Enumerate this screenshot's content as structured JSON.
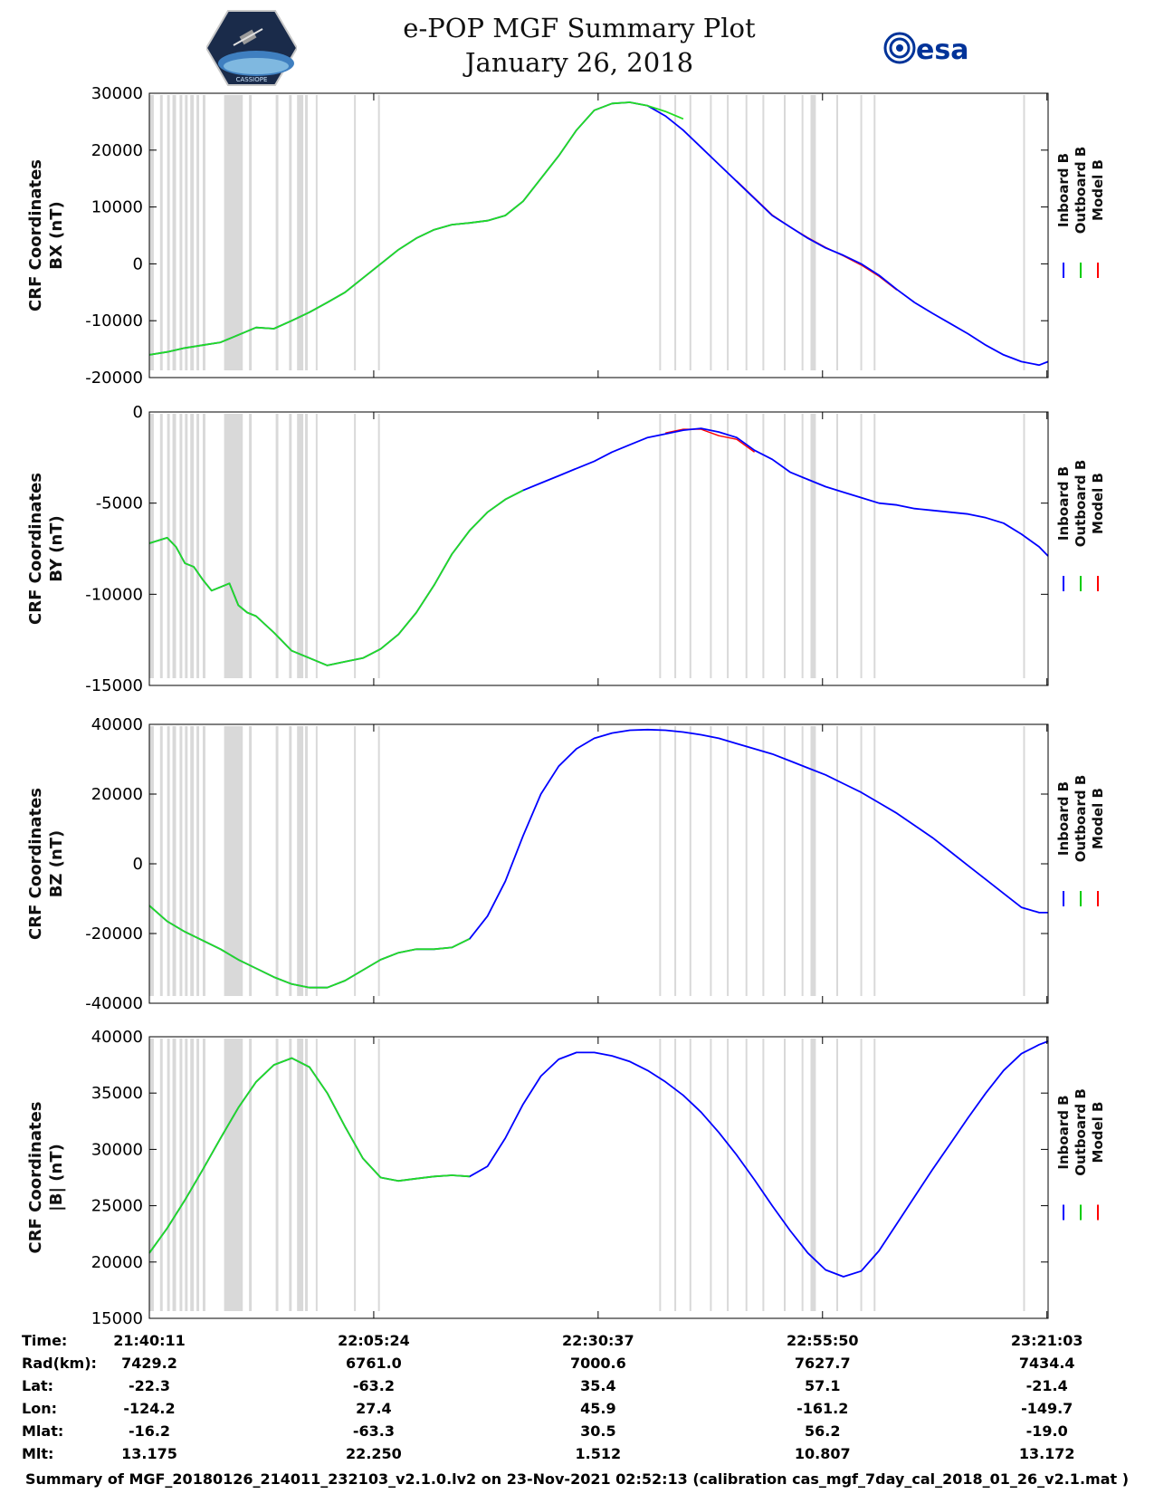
{
  "header": {
    "title_line1": "e-POP MGF Summary Plot",
    "title_line2": "January 26, 2018",
    "left_logo": "cassiope-mission-patch",
    "left_logo_text": "CASSIOPE",
    "right_logo_text": "esa"
  },
  "legend": {
    "entries": [
      "Inboard B",
      "Outboard B",
      "Model B"
    ],
    "colors": [
      "#0000ff",
      "#00cc00",
      "#ff0000"
    ]
  },
  "colors": {
    "inboard": "#0000ff",
    "outboard": "#22dd22",
    "model": "#ff0000",
    "gap_shading": "#d9d9d9",
    "axis": "#000000"
  },
  "chart_data": [
    {
      "type": "line",
      "ylabel_line1": "CRF Coordinates",
      "ylabel_line2": "BX (nT)",
      "ylim": [
        -20000,
        30000
      ],
      "yticks": [
        "30000",
        "20000",
        "10000",
        "0",
        "-10000",
        "-20000"
      ],
      "ytick_values": [
        30000,
        20000,
        10000,
        0,
        -10000,
        -20000
      ],
      "xlim_min": [
        0,
        101
      ],
      "series": [
        {
          "name": "Outboard B",
          "x": [
            0,
            2,
            4,
            6,
            8,
            10,
            12,
            14,
            16,
            18,
            20,
            22,
            24,
            26,
            28,
            30,
            32,
            34,
            36,
            38,
            40,
            42,
            44,
            46,
            48,
            50,
            52,
            54,
            56,
            58,
            60
          ],
          "values": [
            -16000,
            -15500,
            -14800,
            -14300,
            -13800,
            -12500,
            -11200,
            -11400,
            -10000,
            -8500,
            -6800,
            -5000,
            -2500,
            0,
            2500,
            4500,
            6000,
            6900,
            7200,
            7600,
            8500,
            11000,
            15000,
            19000,
            23500,
            27000,
            28200,
            28400,
            27800,
            26800,
            25500
          ]
        },
        {
          "name": "Inboard B",
          "x": [
            0,
            2,
            4,
            6,
            8,
            10,
            12,
            14,
            16,
            18,
            20,
            22,
            24,
            26,
            28,
            30,
            32,
            34,
            36,
            38,
            40,
            42,
            44,
            46,
            48,
            50,
            52,
            54,
            56,
            58,
            60,
            62,
            64,
            66,
            68,
            70,
            72,
            74,
            76,
            78,
            80,
            82,
            84,
            86,
            88,
            90,
            92,
            94,
            96,
            98,
            100,
            101
          ],
          "values": [
            -16000,
            -15500,
            -14800,
            -14300,
            -13800,
            -12500,
            -11200,
            -11400,
            -10000,
            -8500,
            -6800,
            -5000,
            -2500,
            0,
            2500,
            4500,
            6000,
            6900,
            7200,
            7600,
            8500,
            11000,
            15000,
            19000,
            23500,
            27000,
            28200,
            28400,
            27800,
            26000,
            23500,
            20500,
            17500,
            14500,
            11500,
            8500,
            6500,
            4500,
            2800,
            1500,
            0,
            -2000,
            -4500,
            -6800,
            -8700,
            -10500,
            -12300,
            -14300,
            -16000,
            -17200,
            -17800,
            -17200
          ]
        },
        {
          "name": "Model B",
          "x": [
            66,
            68,
            70,
            72,
            74,
            76,
            78,
            80,
            82,
            84
          ],
          "values": [
            14600,
            11600,
            8600,
            6500,
            4600,
            2900,
            1400,
            -200,
            -2200,
            -4600
          ]
        }
      ]
    },
    {
      "type": "line",
      "ylabel_line1": "CRF Coordinates",
      "ylabel_line2": "BY (nT)",
      "ylim": [
        -15000,
        0
      ],
      "yticks": [
        "0",
        "-5000",
        "-10000",
        "-15000"
      ],
      "ytick_values": [
        0,
        -5000,
        -10000,
        -15000
      ],
      "xlim_min": [
        0,
        101
      ],
      "series": [
        {
          "name": "Outboard B",
          "x": [
            0,
            2,
            3,
            4,
            5,
            6,
            7,
            8,
            9,
            10,
            11,
            12,
            14,
            16,
            18,
            20,
            22,
            24,
            26,
            28,
            30,
            32,
            34,
            36,
            38,
            40,
            42
          ],
          "values": [
            -7200,
            -6900,
            -7400,
            -8300,
            -8500,
            -9200,
            -9800,
            -9600,
            -9400,
            -10600,
            -11000,
            -11200,
            -12100,
            -13100,
            -13500,
            -13900,
            -13700,
            -13500,
            -13000,
            -12200,
            -11000,
            -9500,
            -7800,
            -6500,
            -5500,
            -4800,
            -4300
          ]
        },
        {
          "name": "Inboard B",
          "x": [
            0,
            2,
            3,
            4,
            5,
            6,
            7,
            8,
            9,
            10,
            11,
            12,
            14,
            16,
            18,
            20,
            22,
            24,
            26,
            28,
            30,
            32,
            34,
            36,
            38,
            40,
            42,
            44,
            46,
            48,
            50,
            52,
            54,
            56,
            58,
            60,
            62,
            64,
            66,
            68,
            70,
            72,
            74,
            76,
            78,
            80,
            82,
            84,
            86,
            88,
            90,
            92,
            94,
            96,
            98,
            100,
            101
          ],
          "values": [
            -7200,
            -6900,
            -7400,
            -8300,
            -8500,
            -9200,
            -9800,
            -9600,
            -9400,
            -10600,
            -11000,
            -11200,
            -12100,
            -13100,
            -13500,
            -13900,
            -13700,
            -13500,
            -13000,
            -12200,
            -11000,
            -9500,
            -7800,
            -6500,
            -5500,
            -4800,
            -4300,
            -3900,
            -3500,
            -3100,
            -2700,
            -2200,
            -1800,
            -1400,
            -1200,
            -1000,
            -900,
            -1100,
            -1400,
            -2100,
            -2600,
            -3300,
            -3700,
            -4100,
            -4400,
            -4700,
            -5000,
            -5100,
            -5300,
            -5400,
            -5500,
            -5600,
            -5800,
            -6100,
            -6700,
            -7400,
            -7900
          ]
        },
        {
          "name": "Model B",
          "x": [
            58,
            60,
            62,
            64,
            66,
            68
          ],
          "values": [
            -1150,
            -950,
            -950,
            -1300,
            -1500,
            -2200
          ]
        }
      ]
    },
    {
      "type": "line",
      "ylabel_line1": "CRF Coordinates",
      "ylabel_line2": "BZ (nT)",
      "ylim": [
        -40000,
        40000
      ],
      "yticks": [
        "40000",
        "20000",
        "0",
        "-20000",
        "-40000"
      ],
      "ytick_values": [
        40000,
        20000,
        0,
        -20000,
        -40000
      ],
      "xlim_min": [
        0,
        101
      ],
      "series": [
        {
          "name": "Outboard B",
          "x": [
            0,
            2,
            4,
            6,
            8,
            10,
            12,
            14,
            16,
            18,
            20,
            22,
            24,
            26,
            28,
            30,
            32,
            34,
            36
          ],
          "values": [
            -12000,
            -16500,
            -19500,
            -22000,
            -24500,
            -27500,
            -30000,
            -32500,
            -34500,
            -35500,
            -35500,
            -33500,
            -30500,
            -27500,
            -25500,
            -24500,
            -24500,
            -24000,
            -21500
          ]
        },
        {
          "name": "Inboard B",
          "x": [
            0,
            2,
            4,
            6,
            8,
            10,
            12,
            14,
            16,
            18,
            20,
            22,
            24,
            26,
            28,
            30,
            32,
            34,
            36,
            38,
            40,
            42,
            44,
            46,
            48,
            50,
            52,
            54,
            56,
            58,
            60,
            62,
            64,
            66,
            68,
            70,
            72,
            74,
            76,
            78,
            80,
            82,
            84,
            86,
            88,
            90,
            92,
            94,
            96,
            98,
            100,
            101
          ],
          "values": [
            -12000,
            -16500,
            -19500,
            -22000,
            -24500,
            -27500,
            -30000,
            -32500,
            -34500,
            -35500,
            -35500,
            -33500,
            -30500,
            -27500,
            -25500,
            -24500,
            -24500,
            -24000,
            -21500,
            -15000,
            -5000,
            8000,
            20000,
            28000,
            33000,
            36000,
            37500,
            38300,
            38500,
            38300,
            37800,
            37000,
            36000,
            34500,
            33000,
            31500,
            29500,
            27500,
            25500,
            23000,
            20500,
            17500,
            14500,
            11000,
            7500,
            3500,
            -500,
            -4500,
            -8500,
            -12500,
            -14000,
            -14000
          ]
        },
        {
          "name": "Model B",
          "x": [],
          "values": []
        }
      ]
    },
    {
      "type": "line",
      "ylabel_line1": "CRF Coordinates",
      "ylabel_line2": "|B| (nT)",
      "ylim": [
        15000,
        40000
      ],
      "yticks": [
        "40000",
        "35000",
        "30000",
        "25000",
        "20000",
        "15000"
      ],
      "ytick_values": [
        40000,
        35000,
        30000,
        25000,
        20000,
        15000
      ],
      "xlim_min": [
        0,
        101
      ],
      "series": [
        {
          "name": "Outboard B",
          "x": [
            0,
            2,
            4,
            6,
            8,
            10,
            12,
            14,
            16,
            18,
            20,
            22,
            24,
            26,
            28,
            30,
            32,
            34,
            36
          ],
          "values": [
            20800,
            23000,
            25500,
            28200,
            31000,
            33700,
            36000,
            37500,
            38100,
            37300,
            35000,
            32000,
            29200,
            27500,
            27200,
            27400,
            27600,
            27700,
            27600
          ]
        },
        {
          "name": "Inboard B",
          "x": [
            0,
            2,
            4,
            6,
            8,
            10,
            12,
            14,
            16,
            18,
            20,
            22,
            24,
            26,
            28,
            30,
            32,
            34,
            36,
            38,
            40,
            42,
            44,
            46,
            48,
            50,
            52,
            54,
            56,
            58,
            60,
            62,
            64,
            66,
            68,
            70,
            72,
            74,
            76,
            78,
            80,
            82,
            84,
            86,
            88,
            90,
            92,
            94,
            96,
            98,
            100,
            101
          ],
          "values": [
            20800,
            23000,
            25500,
            28200,
            31000,
            33700,
            36000,
            37500,
            38100,
            37300,
            35000,
            32000,
            29200,
            27500,
            27200,
            27400,
            27600,
            27700,
            27600,
            28500,
            31000,
            34000,
            36500,
            38000,
            38600,
            38600,
            38300,
            37800,
            37000,
            36000,
            34800,
            33300,
            31500,
            29500,
            27300,
            25000,
            22800,
            20800,
            19300,
            18700,
            19200,
            21000,
            23400,
            25800,
            28200,
            30500,
            32800,
            35000,
            37000,
            38500,
            39300,
            39600
          ]
        },
        {
          "name": "Model B",
          "x": [],
          "values": []
        }
      ]
    }
  ],
  "gap_bands": [
    [
      0.0,
      0.5
    ],
    [
      1.2,
      1.5
    ],
    [
      2.0,
      2.3
    ],
    [
      2.6,
      3.0
    ],
    [
      3.4,
      3.7
    ],
    [
      4.0,
      4.3
    ],
    [
      4.6,
      5.0
    ],
    [
      5.3,
      5.6
    ],
    [
      6.0,
      6.3
    ],
    [
      8.4,
      10.5
    ],
    [
      11.2,
      11.5
    ],
    [
      14.2,
      14.5
    ],
    [
      15.7,
      16.0
    ],
    [
      16.6,
      17.3
    ],
    [
      17.5,
      17.8
    ],
    [
      18.7,
      18.9
    ],
    [
      23.0,
      23.2
    ],
    [
      25.7,
      25.9
    ],
    [
      57.3,
      57.5
    ],
    [
      59.0,
      59.2
    ],
    [
      60.7,
      60.9
    ],
    [
      63.0,
      63.2
    ],
    [
      64.9,
      65.1
    ],
    [
      67.0,
      67.2
    ],
    [
      68.9,
      69.1
    ],
    [
      71.3,
      71.5
    ],
    [
      73.3,
      73.5
    ],
    [
      74.3,
      74.9
    ],
    [
      77.2,
      77.4
    ],
    [
      79.9,
      80.1
    ],
    [
      81.4,
      81.6
    ],
    [
      98.2,
      98.4
    ]
  ],
  "time_axis": {
    "row_labels": [
      "Time:",
      "Rad(km):",
      "Lat:",
      "Lon:",
      "Mlat:",
      "Mlt:"
    ],
    "columns": [
      {
        "time": "21:40:11",
        "rad": "7429.2",
        "lat": "-22.3",
        "lon": "-124.2",
        "mlat": "-16.2",
        "mlt": "13.175"
      },
      {
        "time": "22:05:24",
        "rad": "6761.0",
        "lat": "-63.2",
        "lon": "27.4",
        "mlat": "-63.3",
        "mlt": "22.250"
      },
      {
        "time": "22:30:37",
        "rad": "7000.6",
        "lat": "35.4",
        "lon": "45.9",
        "mlat": "30.5",
        "mlt": "1.512"
      },
      {
        "time": "22:55:50",
        "rad": "7627.7",
        "lat": "57.1",
        "lon": "-161.2",
        "mlat": "56.2",
        "mlt": "10.807"
      },
      {
        "time": "23:21:03",
        "rad": "7434.4",
        "lat": "-21.4",
        "lon": "-149.7",
        "mlat": "-19.0",
        "mlt": "13.172"
      }
    ],
    "tick_minutes": [
      0,
      25.2167,
      50.4333,
      75.65,
      100.8667
    ]
  },
  "footer_text": "Summary of MGF_20180126_214011_232103_v2.1.0.lv2 on 23-Nov-2021 02:52:13 (calibration cas_mgf_7day_cal_2018_01_26_v2.1.mat )"
}
